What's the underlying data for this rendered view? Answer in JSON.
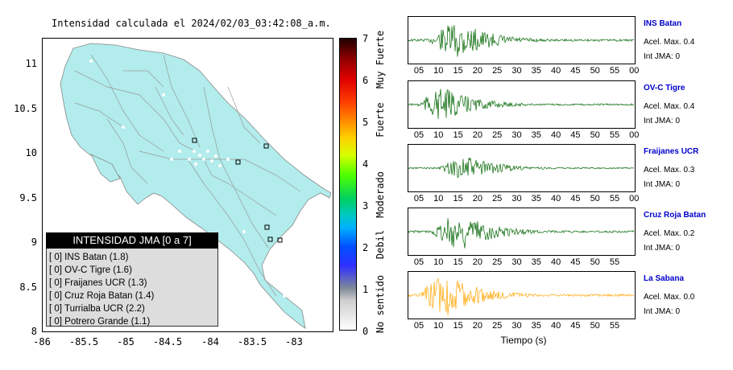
{
  "title": "Intensidad calculada el 2024/02/03_03:42:08_a.m.",
  "map": {
    "y_ticks": [
      "11",
      "10.5",
      "10",
      "9.5",
      "9",
      "8.5",
      "8"
    ],
    "x_ticks": [
      "-86",
      "-85.5",
      "-85",
      "-84.5",
      "-84",
      "-83.5",
      "-83"
    ],
    "land_color": "#b2ecec",
    "road_color": "#999999"
  },
  "legend": {
    "title": "INTENSIDAD JMA [0 a 7]",
    "rows": [
      "[ 0] INS Batan (1.8)",
      "[ 0] OV-C Tigre (1.6)",
      "[ 0] Fraijanes UCR (1.3)",
      "[ 0] Cruz Roja Batan (1.4)",
      "[ 0] Turrialba UCR (2.2)",
      "[ 0] Potrero Grande (1.1)"
    ]
  },
  "colorbar": {
    "ticks": [
      "7",
      "6",
      "5",
      "4",
      "3",
      "2",
      "1",
      "0"
    ],
    "labels": [
      "Muy Fuerte",
      "Fuerte",
      "Moderado",
      "Debil",
      "No sentido"
    ]
  },
  "panels": [
    {
      "name": "INS Batan",
      "acc": "Acel. Max. 0.4",
      "int": "Int JMA: 0",
      "color": "#006400",
      "ticks": [
        "05",
        "10",
        "15",
        "20",
        "25",
        "30",
        "35",
        "40",
        "45",
        "50",
        "55",
        "00"
      ]
    },
    {
      "name": "OV-C Tigre",
      "acc": "Acel. Max. 0.4",
      "int": "Int JMA: 0",
      "color": "#006400",
      "ticks": [
        "05",
        "10",
        "15",
        "20",
        "25",
        "30",
        "35",
        "40",
        "45",
        "50",
        "55",
        "00"
      ]
    },
    {
      "name": "Fraijanes UCR",
      "acc": "Acel. Max. 0.3",
      "int": "Int JMA: 0",
      "color": "#006400",
      "ticks": [
        "05",
        "10",
        "15",
        "20",
        "25",
        "30",
        "35",
        "40",
        "45",
        "50",
        "55",
        "00"
      ]
    },
    {
      "name": "Cruz Roja Batan",
      "acc": "Acel. Max. 0.2",
      "int": "Int JMA: 0",
      "color": "#006400",
      "ticks": [
        "05",
        "10",
        "15",
        "20",
        "25",
        "30",
        "35",
        "40",
        "45",
        "50",
        "55"
      ]
    },
    {
      "name": "La Sabana",
      "acc": "Acel. Max. 0.0",
      "int": "Int JMA: 0",
      "color": "#ffa500",
      "ticks": [
        "05",
        "10",
        "15",
        "20",
        "25",
        "30",
        "35",
        "40",
        "45",
        "50",
        "55"
      ]
    }
  ],
  "time_axis_label": "Tiempo (s)"
}
